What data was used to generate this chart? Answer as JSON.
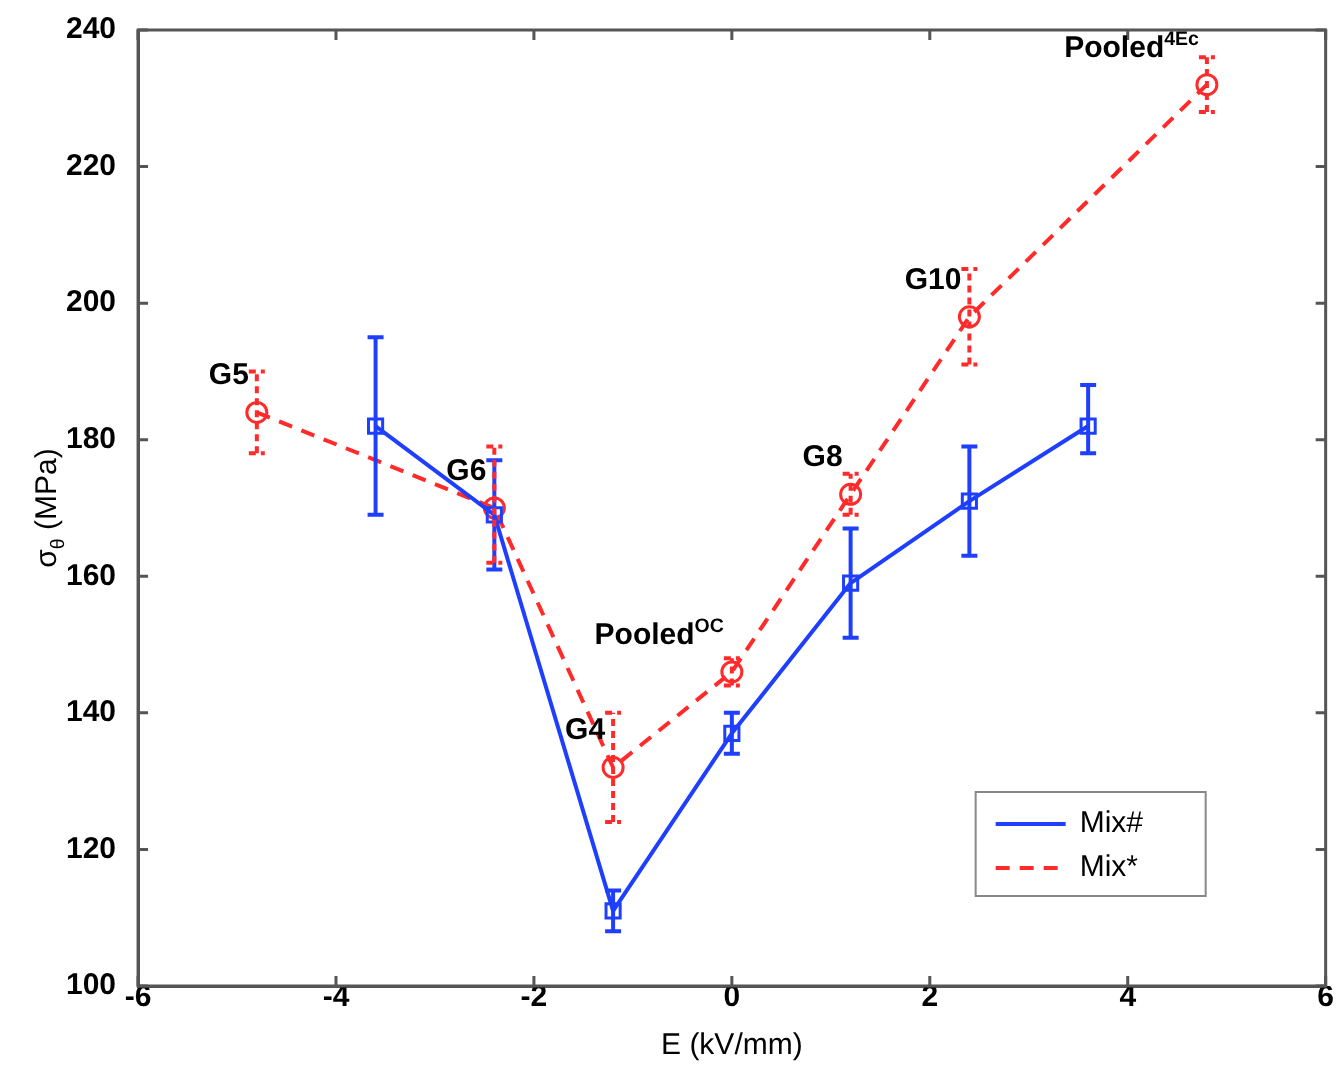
{
  "chart_data": {
    "type": "line",
    "xlabel": "E (kV/mm)",
    "ylabel": "σ$_{θ}$ (MPa)",
    "xlim": [
      -6,
      6
    ],
    "xticks": [
      -6,
      -4,
      -2,
      0,
      2,
      4,
      6
    ],
    "ylim": [
      100,
      240
    ],
    "yticks": [
      100,
      120,
      140,
      160,
      180,
      200,
      220,
      240
    ],
    "grid": false,
    "legend": "bottom right",
    "series": [
      {
        "name": "Mix#",
        "color": "#1f3fff",
        "marker": "square",
        "line_style": "solid",
        "x": [
          -3.6,
          -2.4,
          -1.2,
          0,
          1.2,
          2.4,
          3.6
        ],
        "values": [
          182,
          169,
          111,
          137,
          159,
          171,
          182
        ],
        "errors": [
          [
            169,
            195
          ],
          [
            161,
            177
          ],
          [
            108,
            114
          ],
          [
            134,
            140
          ],
          [
            151,
            167
          ],
          [
            163,
            179
          ],
          [
            178,
            188
          ]
        ]
      },
      {
        "name": "Mix*",
        "color": "#ff2a2a",
        "marker": "circle",
        "line_style": "dashed",
        "x": [
          -4.8,
          -2.4,
          -1.2,
          0,
          1.2,
          2.4,
          4.8
        ],
        "values": [
          184,
          170,
          132,
          146,
          172,
          198,
          232
        ],
        "errors": [
          [
            178,
            190
          ],
          [
            162,
            179
          ],
          [
            124,
            140
          ],
          [
            144,
            148
          ],
          [
            169,
            175
          ],
          [
            191,
            205
          ],
          [
            228,
            236
          ]
        ]
      }
    ],
    "annotations": [
      {
        "text": "G5",
        "x": -4.8,
        "y": 184
      },
      {
        "text": "G6",
        "x": -2.4,
        "y": 170
      },
      {
        "text": "G4",
        "x": -1.2,
        "y": 132
      },
      {
        "text": "Pooled$^{OC}$",
        "x": 0,
        "y": 146
      },
      {
        "text": "G8",
        "x": 1.2,
        "y": 172
      },
      {
        "text": "G10",
        "x": 2.4,
        "y": 198
      },
      {
        "text": "Pooled$^{4Ec}$",
        "x": 4.8,
        "y": 232
      }
    ]
  }
}
